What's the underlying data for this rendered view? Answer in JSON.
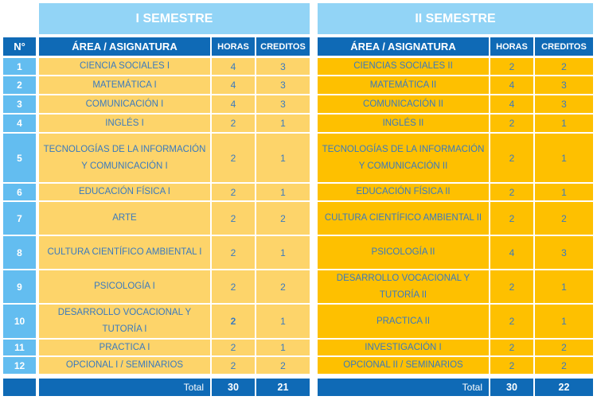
{
  "header": {
    "number_label": "N°",
    "area_label": "ÁREA / ASIGNATURA",
    "hours_label": "HORAS",
    "credits_label": "CREDITOS"
  },
  "semesters": [
    {
      "title": "I SEMESTRE",
      "subjects": [
        {
          "name": "CIENCIA SOCIALES I",
          "hours": "4",
          "credits": "3"
        },
        {
          "name": "MATEMÁTICA I",
          "hours": "4",
          "credits": "3"
        },
        {
          "name": "COMUNICACIÓN I",
          "hours": "4",
          "credits": "3"
        },
        {
          "name": "INGLÉS I",
          "hours": "2",
          "credits": "1"
        },
        {
          "name": "TECNOLOGÍAS DE LA INFORMACIÓN Y COMUNICACIÓN I",
          "hours": "2",
          "credits": "1"
        },
        {
          "name": "EDUCACIÓN FÍSICA I",
          "hours": "2",
          "credits": "1"
        },
        {
          "name": "ARTE",
          "hours": "2",
          "credits": "2"
        },
        {
          "name": "CULTURA CIENTÍFICO AMBIENTAL I",
          "hours": "2",
          "credits": "1"
        },
        {
          "name": "PSICOLOGÍA I",
          "hours": "2",
          "credits": "2"
        },
        {
          "name": "DESARROLLO VOCACIONAL Y TUTORÍA I",
          "hours": "2",
          "credits": "1"
        },
        {
          "name": "PRACTICA I",
          "hours": "2",
          "credits": "1"
        },
        {
          "name": "OPCIONAL I / SEMINARIOS",
          "hours": "2",
          "credits": "2"
        }
      ],
      "total_label": "Total",
      "total_hours": "30",
      "total_credits": "21"
    },
    {
      "title": "II SEMESTRE",
      "subjects": [
        {
          "name": "CIENCIAS SOCIALES II",
          "hours": "2",
          "credits": "2"
        },
        {
          "name": "MATEMÁTICA II",
          "hours": "4",
          "credits": "3"
        },
        {
          "name": "COMUNICACIÓN II",
          "hours": "4",
          "credits": "3"
        },
        {
          "name": "INGLÉS II",
          "hours": "2",
          "credits": "1"
        },
        {
          "name": "TECNOLOGÍAS DE LA INFORMACIÓN Y COMUNICACIÓN II",
          "hours": "2",
          "credits": "1"
        },
        {
          "name": "EDUCACIÓN FÍSICA II",
          "hours": "2",
          "credits": "1"
        },
        {
          "name": "CULTURA CIENTÍFICO AMBIENTAL II",
          "hours": "2",
          "credits": "2"
        },
        {
          "name": "PSICOLOGÍA II",
          "hours": "4",
          "credits": "3"
        },
        {
          "name": "DESARROLLO VOCACIONAL Y TUTORÍA II",
          "hours": "2",
          "credits": "1"
        },
        {
          "name": "PRACTICA II",
          "hours": "2",
          "credits": "1"
        },
        {
          "name": "INVESTIGACIÓN I",
          "hours": "2",
          "credits": "2"
        },
        {
          "name": "OPCIONAL II / SEMINARIOS",
          "hours": "2",
          "credits": "2"
        }
      ],
      "total_label": "Total",
      "total_hours": "30",
      "total_credits": "22"
    }
  ],
  "row_numbers": [
    "1",
    "2",
    "3",
    "4",
    "5",
    "6",
    "7",
    "8",
    "9",
    "10",
    "11",
    "12"
  ],
  "colors": {
    "semester_header": "#92d4f6",
    "column_header": "#0f6ab6",
    "number_cell": "#63bdf0",
    "semester1_fill": "#fdd46a",
    "semester2_fill": "#fec000",
    "text": "#3a7abe"
  }
}
